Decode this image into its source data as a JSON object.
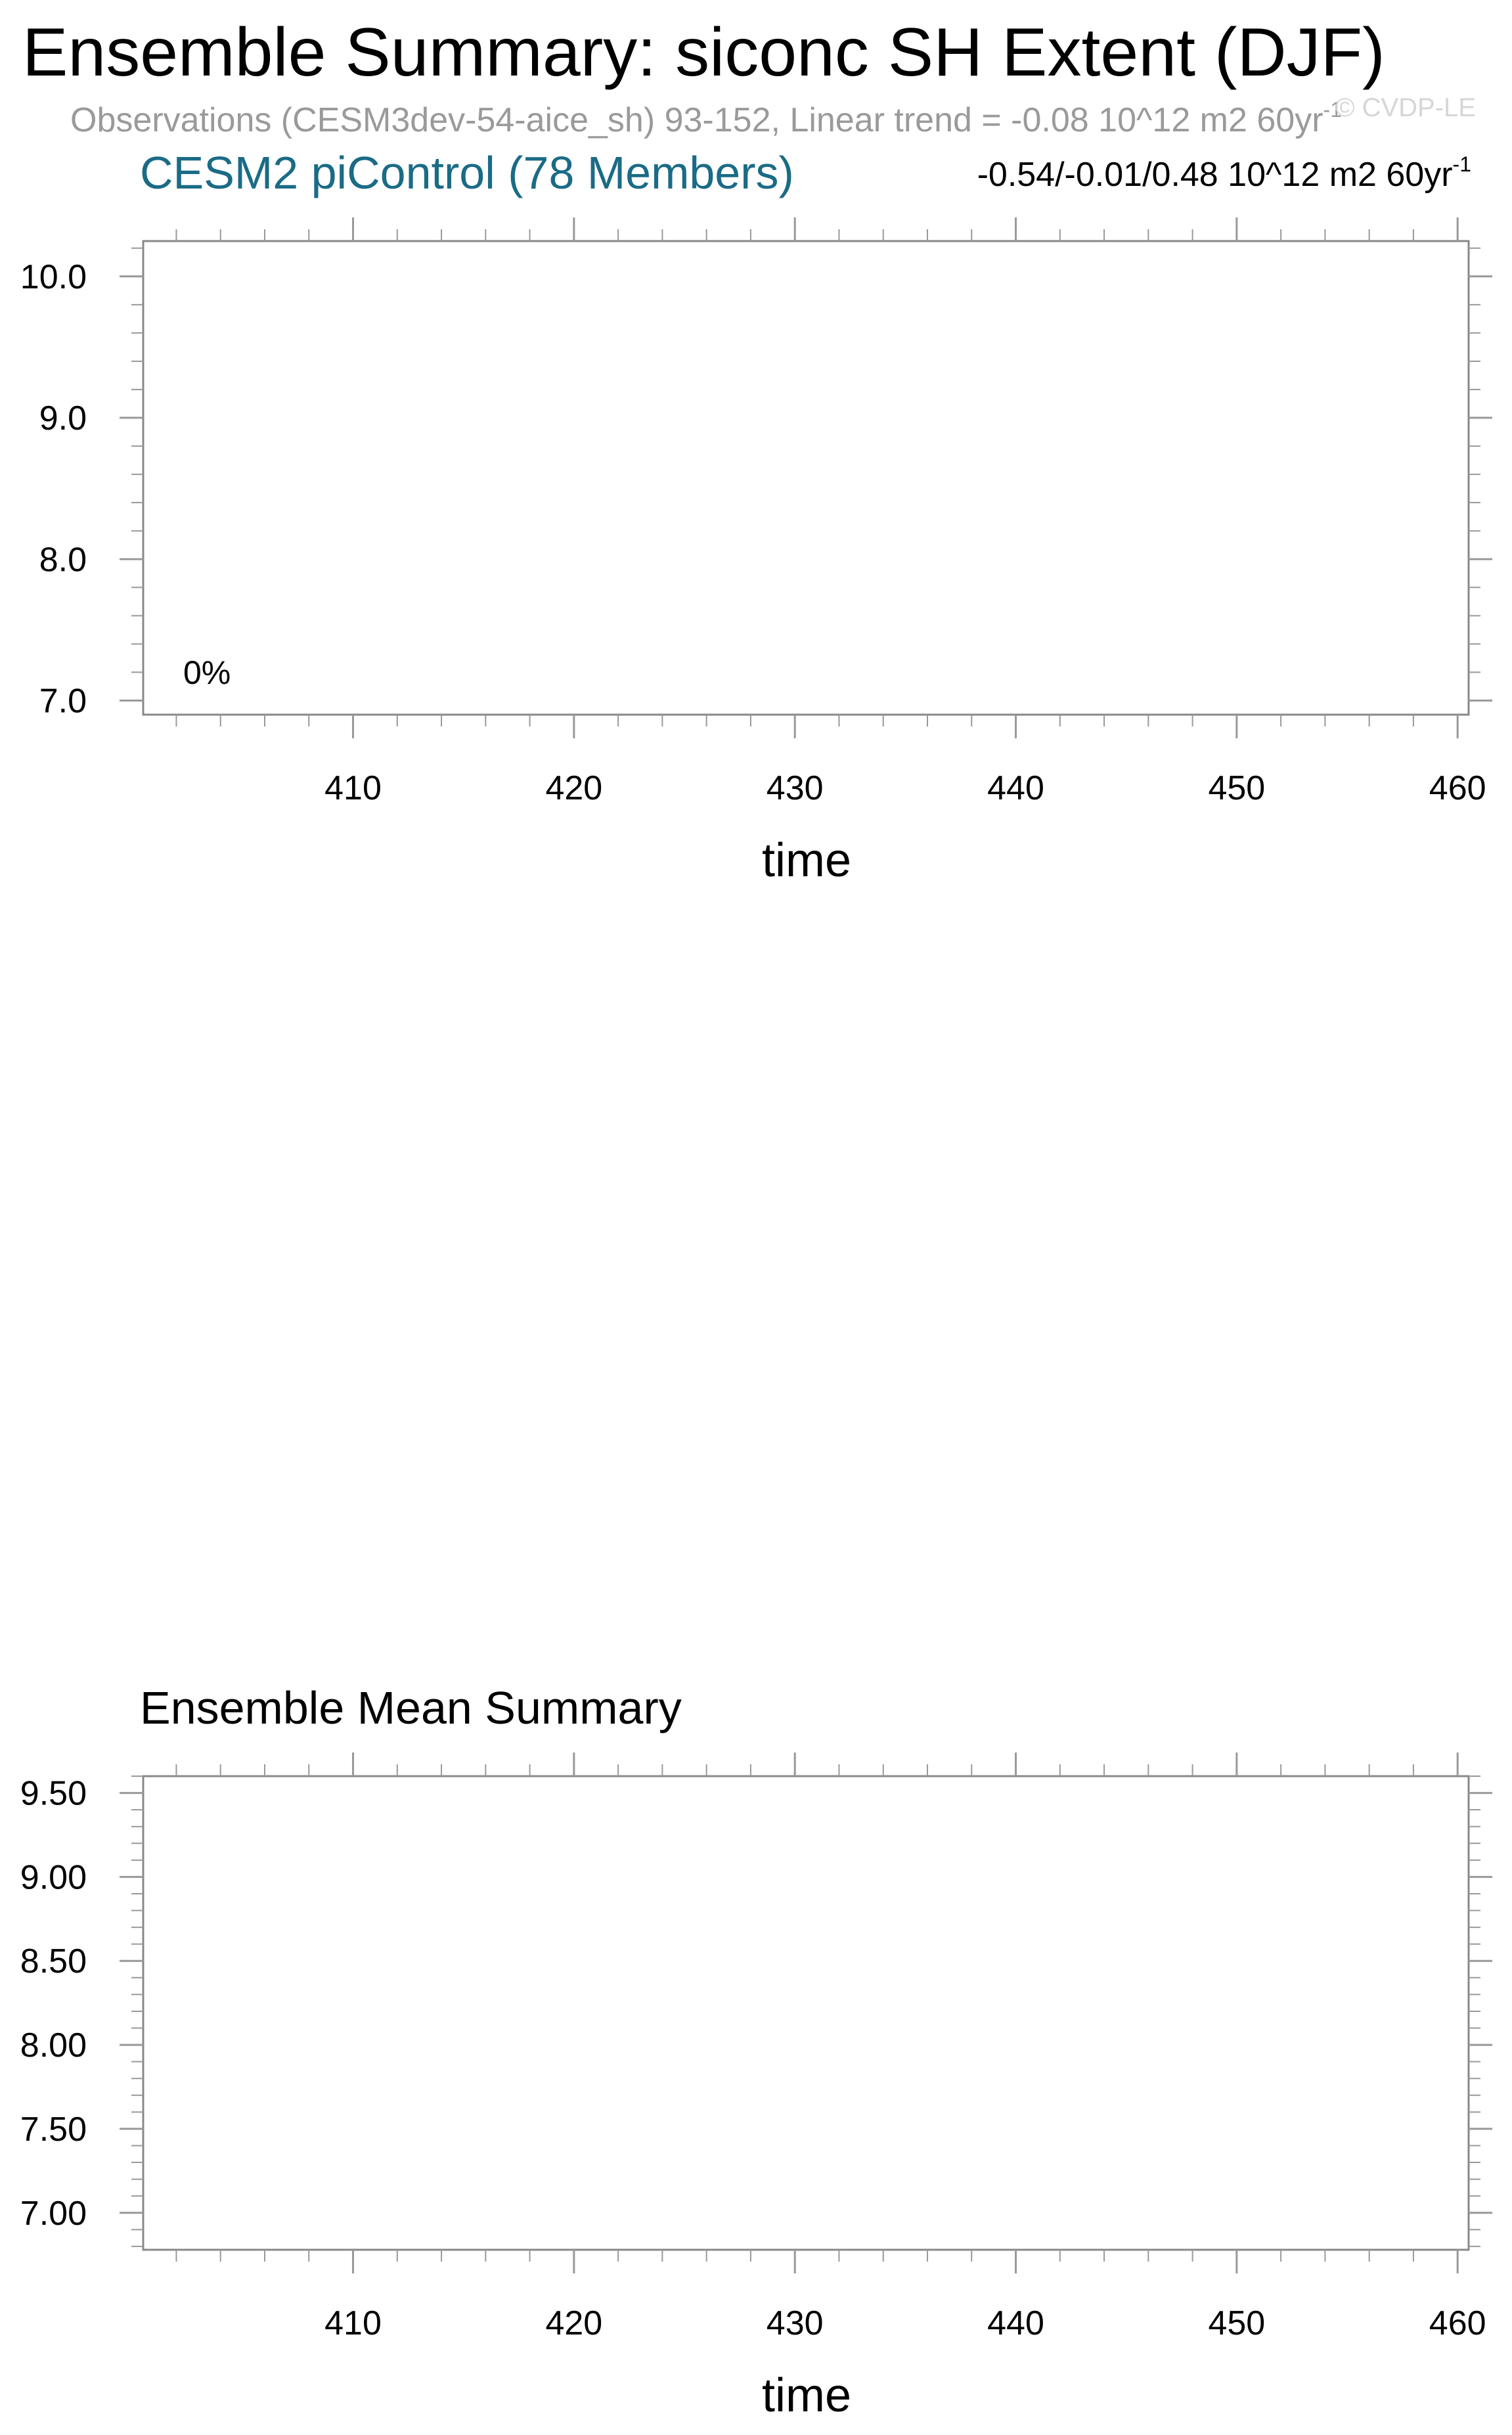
{
  "header": {
    "title": "Ensemble Summary: siconc SH Extent (DJF)",
    "observations_text": "Observations (CESM3dev-54-aice_sh) 93-152, Linear trend = -0.08 10^12 m2 60yr",
    "observations_superscript": "-1",
    "watermark": "© CVDP-LE",
    "model_label": "CESM2 piControl (78 Members)",
    "trend_range_text": "-0.54/-0.01/0.48 10^12 m2 60yr",
    "trend_range_superscript": "-1"
  },
  "panel_bottom": {
    "title": "Ensemble Mean Summary"
  },
  "chart_data": [
    {
      "type": "line",
      "title": "",
      "xlabel": "time",
      "ylabel": "",
      "xlim": [
        400.5,
        460.5
      ],
      "ylim": [
        6.9,
        10.25
      ],
      "x_ticks": [
        410,
        420,
        430,
        440,
        450,
        460
      ],
      "x_tick_labels": [
        "410",
        "420",
        "430",
        "440",
        "450",
        "460"
      ],
      "y_ticks": [
        7.0,
        8.0,
        9.0,
        10.0
      ],
      "y_tick_labels": [
        "7.0",
        "8.0",
        "9.0",
        "10.0"
      ],
      "annotation": "0%",
      "series": []
    },
    {
      "type": "line",
      "title": "Ensemble Mean Summary",
      "xlabel": "time",
      "ylabel": "",
      "xlim": [
        400.5,
        460.5
      ],
      "ylim": [
        6.78,
        9.6
      ],
      "x_ticks": [
        410,
        420,
        430,
        440,
        450,
        460
      ],
      "x_tick_labels": [
        "410",
        "420",
        "430",
        "440",
        "450",
        "460"
      ],
      "y_ticks": [
        7.0,
        7.5,
        8.0,
        8.5,
        9.0,
        9.5
      ],
      "y_tick_labels": [
        "7.00",
        "7.50",
        "8.00",
        "8.50",
        "9.00",
        "9.50"
      ],
      "series": []
    }
  ]
}
